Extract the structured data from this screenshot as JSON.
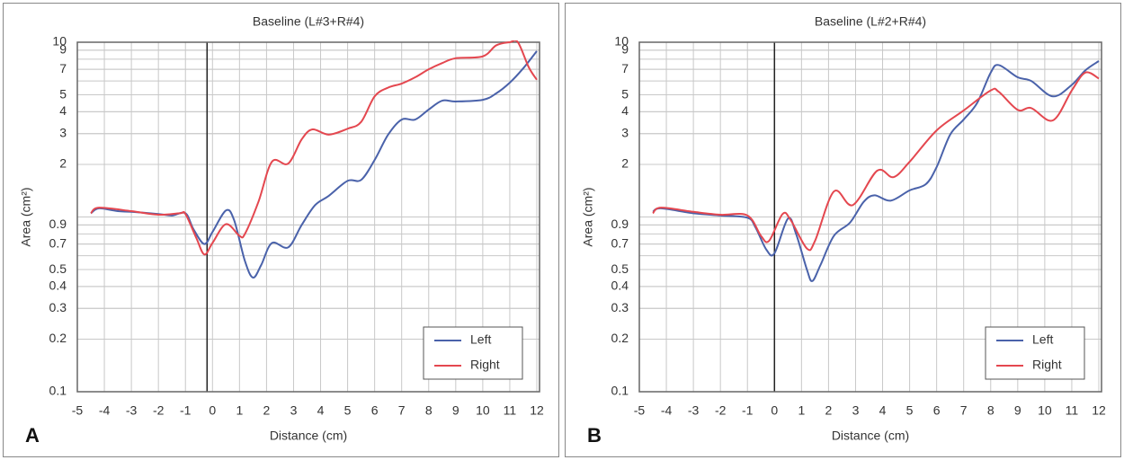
{
  "chart_data": [
    {
      "type": "line",
      "title": "Baseline (L#3+R#4)",
      "panel_label": "A",
      "x_label": "Distance (cm)",
      "y_label": "Area (cm²)",
      "log_y": true,
      "grid": true,
      "legend": "lower right",
      "vline": -0.2,
      "xlim": [
        -5,
        12.1
      ],
      "xticks": [
        -5,
        -4,
        -3,
        -2,
        -1,
        0,
        1,
        2,
        3,
        4,
        5,
        6,
        7,
        8,
        9,
        10,
        11,
        12
      ],
      "ylim": [
        0.1,
        10
      ],
      "yticks": [
        0.1,
        0.2,
        0.3,
        0.4,
        0.5,
        0.7,
        0.9,
        2,
        3,
        4,
        5,
        7,
        9,
        10
      ],
      "series": [
        {
          "name": "Left",
          "color": "#4a62aa",
          "x": [
            -4.5,
            -4.2,
            -3.5,
            -3,
            -2,
            -1.5,
            -1,
            -0.7,
            -0.3,
            0,
            0.5,
            0.8,
            1.2,
            1.5,
            1.8,
            2.2,
            2.8,
            3.3,
            3.8,
            4.3,
            5,
            5.5,
            6,
            6.5,
            7,
            7.5,
            8,
            8.5,
            9,
            10,
            10.5,
            11,
            11.5,
            12
          ],
          "values": [
            1.05,
            1.12,
            1.08,
            1.07,
            1.04,
            1.02,
            1.05,
            0.85,
            0.7,
            0.82,
            1.09,
            0.96,
            0.56,
            0.45,
            0.53,
            0.71,
            0.67,
            0.9,
            1.17,
            1.32,
            1.61,
            1.63,
            2.12,
            2.96,
            3.61,
            3.61,
            4.12,
            4.63,
            4.58,
            4.68,
            5.1,
            5.87,
            7.1,
            8.9
          ]
        },
        {
          "name": "Right",
          "color": "#e4474f",
          "x": [
            -4.5,
            -4.2,
            -3,
            -2,
            -1.2,
            -1,
            -0.6,
            -0.3,
            0,
            0.5,
            1,
            1.2,
            1.7,
            2.2,
            2.8,
            3.3,
            3.7,
            4.3,
            5,
            5.5,
            6,
            6.5,
            7,
            7.5,
            8,
            8.5,
            9,
            10,
            10.5,
            11,
            11.3,
            11.7,
            12
          ],
          "values": [
            1.05,
            1.13,
            1.08,
            1.03,
            1.05,
            1.04,
            0.76,
            0.61,
            0.71,
            0.91,
            0.78,
            0.8,
            1.22,
            2.07,
            2.02,
            2.78,
            3.17,
            2.96,
            3.2,
            3.5,
            4.9,
            5.5,
            5.8,
            6.3,
            7.0,
            7.6,
            8.1,
            8.3,
            9.6,
            10,
            10,
            7.2,
            6.1
          ]
        }
      ]
    },
    {
      "type": "line",
      "title": "Baseline (L#2+R#4)",
      "panel_label": "B",
      "x_label": "Distance (cm)",
      "y_label": "Area (cm²)",
      "log_y": true,
      "grid": true,
      "legend": "lower right",
      "vline": 0,
      "xlim": [
        -5,
        12.1
      ],
      "xticks": [
        -5,
        -4,
        -3,
        -2,
        -1,
        0,
        1,
        2,
        3,
        4,
        5,
        6,
        7,
        8,
        9,
        10,
        11,
        12
      ],
      "ylim": [
        0.1,
        10
      ],
      "yticks": [
        0.1,
        0.2,
        0.3,
        0.4,
        0.5,
        0.7,
        0.9,
        2,
        3,
        4,
        5,
        7,
        9,
        10
      ],
      "series": [
        {
          "name": "Left",
          "color": "#4a62aa",
          "x": [
            -4.5,
            -4.2,
            -3,
            -2,
            -1,
            -0.7,
            -0.3,
            0,
            0.5,
            0.8,
            1.2,
            1.4,
            1.7,
            2.2,
            2.8,
            3.3,
            3.7,
            4.3,
            5,
            5.6,
            6,
            6.5,
            7,
            7.5,
            8,
            8.3,
            9,
            9.5,
            10.3,
            11,
            11.5,
            12
          ],
          "values": [
            1.07,
            1.12,
            1.05,
            1.02,
            0.99,
            0.87,
            0.65,
            0.62,
            0.98,
            0.8,
            0.5,
            0.43,
            0.53,
            0.78,
            0.93,
            1.22,
            1.33,
            1.24,
            1.42,
            1.54,
            1.93,
            2.96,
            3.61,
            4.5,
            6.7,
            7.4,
            6.3,
            6.0,
            4.9,
            5.7,
            6.9,
            7.8
          ]
        },
        {
          "name": "Right",
          "color": "#e4474f",
          "x": [
            -4.5,
            -4.2,
            -3,
            -2,
            -1,
            -0.5,
            -0.2,
            0.3,
            0.6,
            1.2,
            1.5,
            2.2,
            2.9,
            3.8,
            4.4,
            5,
            6,
            7,
            8,
            8.3,
            9,
            9.5,
            10.3,
            11,
            11.5,
            12
          ],
          "values": [
            1.05,
            1.13,
            1.07,
            1.03,
            1.02,
            0.78,
            0.73,
            1.04,
            0.96,
            0.66,
            0.73,
            1.4,
            1.17,
            1.84,
            1.69,
            2.07,
            3.13,
            4.07,
            5.3,
            5.2,
            4.1,
            4.2,
            3.57,
            5.3,
            6.7,
            6.2
          ]
        }
      ]
    }
  ]
}
